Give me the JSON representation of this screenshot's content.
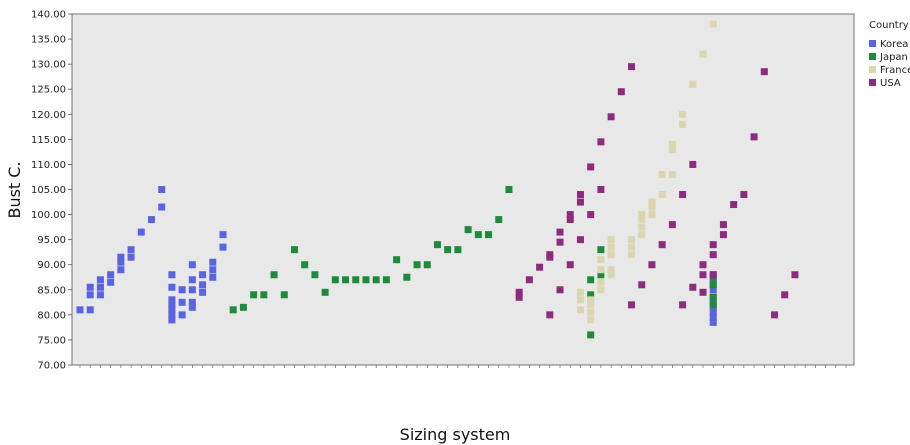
{
  "chart_data": {
    "type": "scatter",
    "xlabel": "Sizing system",
    "ylabel": "Bust C.",
    "ylim": [
      70,
      140
    ],
    "yticks": [
      "70.00",
      "75.00",
      "80.00",
      "85.00",
      "90.00",
      "95.00",
      "100.00",
      "105.00",
      "110.00",
      "115.00",
      "120.00",
      "125.00",
      "130.00",
      "135.00",
      "140.00"
    ],
    "legend": {
      "title": "Country",
      "position": "right"
    },
    "series": [
      {
        "name": "Korea",
        "color": "#5a63e0",
        "points": [
          [
            1,
            81
          ],
          [
            2,
            81
          ],
          [
            2,
            84
          ],
          [
            2,
            85.5
          ],
          [
            3,
            84
          ],
          [
            3,
            85.5
          ],
          [
            3,
            87
          ],
          [
            4,
            86.5
          ],
          [
            4,
            88
          ],
          [
            5,
            89
          ],
          [
            5,
            90.5
          ],
          [
            5,
            91.5
          ],
          [
            6,
            91.5
          ],
          [
            6,
            93
          ],
          [
            7,
            96.5
          ],
          [
            8,
            99
          ],
          [
            9,
            101.5
          ],
          [
            9,
            105
          ],
          [
            10,
            79
          ],
          [
            10,
            80
          ],
          [
            10,
            81
          ],
          [
            10,
            82
          ],
          [
            10,
            83
          ],
          [
            10,
            85.5
          ],
          [
            10,
            88
          ],
          [
            11,
            80
          ],
          [
            11,
            82.5
          ],
          [
            11,
            85
          ],
          [
            12,
            81.5
          ],
          [
            12,
            82.5
          ],
          [
            12,
            85
          ],
          [
            12,
            87
          ],
          [
            12,
            90
          ],
          [
            13,
            84.5
          ],
          [
            13,
            86
          ],
          [
            13,
            88
          ],
          [
            14,
            87.5
          ],
          [
            14,
            89
          ],
          [
            14,
            90.5
          ],
          [
            15,
            93.5
          ],
          [
            15,
            96
          ],
          [
            63,
            78.5
          ],
          [
            63,
            79.5
          ],
          [
            63,
            80.5
          ],
          [
            63,
            81.5
          ],
          [
            63,
            82.5
          ],
          [
            63,
            83.5
          ],
          [
            63,
            85
          ],
          [
            63,
            86
          ],
          [
            63,
            87
          ],
          [
            63,
            88
          ]
        ]
      },
      {
        "name": "Japan",
        "color": "#1f8a3c",
        "points": [
          [
            16,
            81
          ],
          [
            17,
            81.5
          ],
          [
            18,
            84
          ],
          [
            19,
            84
          ],
          [
            20,
            88
          ],
          [
            21,
            84
          ],
          [
            22,
            93
          ],
          [
            23,
            90
          ],
          [
            24,
            88
          ],
          [
            25,
            84.5
          ],
          [
            26,
            87
          ],
          [
            27,
            87
          ],
          [
            28,
            87
          ],
          [
            29,
            87
          ],
          [
            30,
            87
          ],
          [
            31,
            87
          ],
          [
            32,
            91
          ],
          [
            33,
            87.5
          ],
          [
            34,
            90
          ],
          [
            35,
            90
          ],
          [
            36,
            94
          ],
          [
            37,
            93
          ],
          [
            38,
            93
          ],
          [
            39,
            97
          ],
          [
            40,
            96
          ],
          [
            41,
            96
          ],
          [
            42,
            99
          ],
          [
            43,
            105
          ],
          [
            51,
            76
          ],
          [
            51,
            84
          ],
          [
            51,
            87
          ],
          [
            52,
            88
          ],
          [
            52,
            93
          ],
          [
            63,
            82
          ],
          [
            63,
            83.5
          ],
          [
            63,
            86
          ],
          [
            63,
            87.5
          ]
        ]
      },
      {
        "name": "France",
        "color": "#d9d6b0",
        "points": [
          [
            50,
            81
          ],
          [
            50,
            83
          ],
          [
            50,
            84.5
          ],
          [
            51,
            79
          ],
          [
            51,
            80.5
          ],
          [
            51,
            82
          ],
          [
            51,
            83
          ],
          [
            52,
            85
          ],
          [
            52,
            86.5
          ],
          [
            52,
            89
          ],
          [
            52,
            91
          ],
          [
            53,
            88
          ],
          [
            53,
            89
          ],
          [
            53,
            92
          ],
          [
            53,
            93.5
          ],
          [
            53,
            95
          ],
          [
            55,
            92
          ],
          [
            55,
            93.5
          ],
          [
            55,
            95
          ],
          [
            56,
            96
          ],
          [
            56,
            97.5
          ],
          [
            56,
            99
          ],
          [
            56,
            100
          ],
          [
            57,
            100
          ],
          [
            57,
            101.5
          ],
          [
            57,
            102.5
          ],
          [
            58,
            104
          ],
          [
            58,
            108
          ],
          [
            59,
            108
          ],
          [
            59,
            113
          ],
          [
            59,
            114
          ],
          [
            60,
            118
          ],
          [
            60,
            120
          ],
          [
            61,
            126
          ],
          [
            62,
            132
          ],
          [
            63,
            138
          ]
        ]
      },
      {
        "name": "USA",
        "color": "#8b2d7c",
        "points": [
          [
            44,
            83.5
          ],
          [
            44,
            84.5
          ],
          [
            45,
            87
          ],
          [
            46,
            89.5
          ],
          [
            47,
            80
          ],
          [
            47,
            91.5
          ],
          [
            47,
            92
          ],
          [
            48,
            85
          ],
          [
            48,
            94.5
          ],
          [
            48,
            96.5
          ],
          [
            49,
            90
          ],
          [
            49,
            99
          ],
          [
            49,
            100
          ],
          [
            50,
            95
          ],
          [
            50,
            102.5
          ],
          [
            50,
            104
          ],
          [
            51,
            100
          ],
          [
            51,
            109.5
          ],
          [
            52,
            105
          ],
          [
            52,
            114.5
          ],
          [
            53,
            119.5
          ],
          [
            54,
            124.5
          ],
          [
            55,
            82
          ],
          [
            55,
            129.5
          ],
          [
            56,
            86
          ],
          [
            57,
            90
          ],
          [
            58,
            94
          ],
          [
            59,
            98
          ],
          [
            60,
            82
          ],
          [
            60,
            104
          ],
          [
            61,
            85.5
          ],
          [
            61,
            110
          ],
          [
            62,
            84.5
          ],
          [
            62,
            88
          ],
          [
            62,
            90
          ],
          [
            63,
            88
          ],
          [
            63,
            92
          ],
          [
            63,
            94
          ],
          [
            64,
            96
          ],
          [
            64,
            98
          ],
          [
            65,
            102
          ],
          [
            66,
            104
          ],
          [
            67,
            115.5
          ],
          [
            68,
            128.5
          ],
          [
            69,
            80
          ],
          [
            70,
            84
          ],
          [
            71,
            88
          ]
        ]
      }
    ]
  },
  "x_slots": 76
}
